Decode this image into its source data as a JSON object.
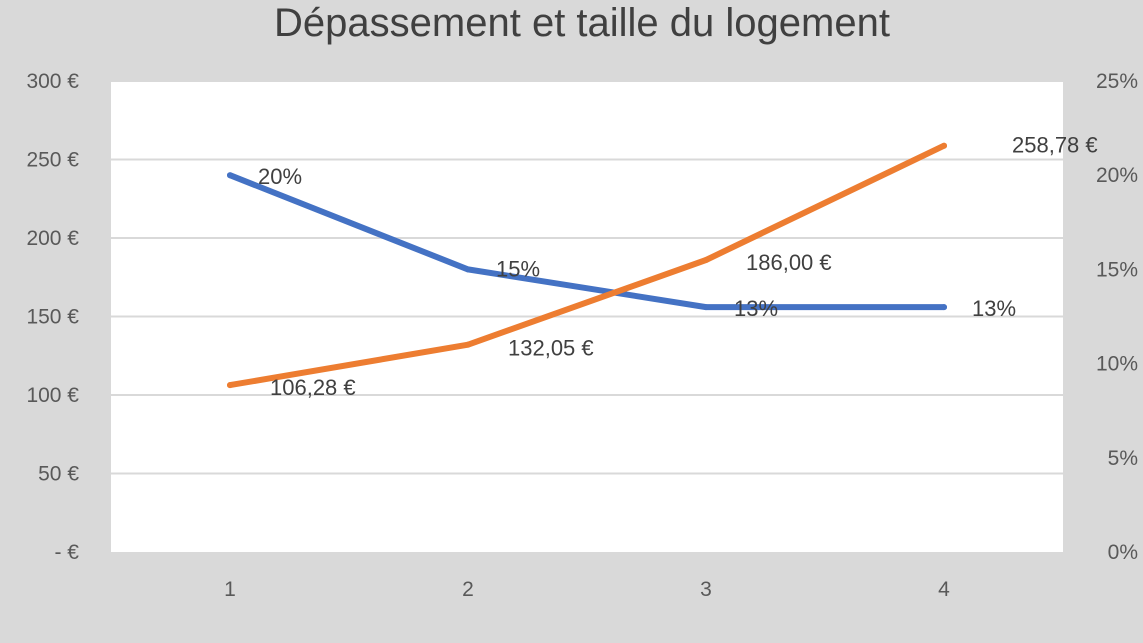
{
  "chart_data": {
    "type": "line",
    "title": "Dépassement et taille du logement",
    "xlabel": "",
    "ylabel": "",
    "categories": [
      "1",
      "2",
      "3",
      "4"
    ],
    "y_left": {
      "min": 0,
      "max": 300,
      "step": 50,
      "tick_labels": [
        "- €",
        "50 €",
        "100 €",
        "150 €",
        "200 €",
        "250 €",
        "300 €"
      ]
    },
    "y_right": {
      "min": 0,
      "max": 0.25,
      "step": 0.05,
      "tick_labels": [
        "0%",
        "5%",
        "10%",
        "15%",
        "20%",
        "25%"
      ]
    },
    "grid": true,
    "series": [
      {
        "axis": "right",
        "color": "#4472c4",
        "values": [
          0.2,
          0.15,
          0.13,
          0.13
        ],
        "labels": [
          "20%",
          "15%",
          "13%",
          "13%"
        ]
      },
      {
        "axis": "left",
        "color": "#ed7d31",
        "values": [
          106.28,
          132.05,
          186.0,
          258.78
        ],
        "labels": [
          "106,28 €",
          "132,05 €",
          "186,00 €",
          "258,78 €"
        ]
      }
    ]
  }
}
